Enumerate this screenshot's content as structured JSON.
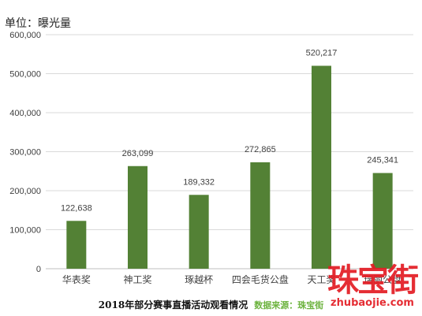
{
  "unit_label": "单位：曝光量",
  "footer": {
    "title": "2018年部分赛事直播活动观看情况",
    "source": "数据来源：珠宝街"
  },
  "watermark": {
    "text": "珠宝街",
    "url": "zhubaojie.com"
  },
  "colors": {
    "bar": "#538135",
    "grid": "#d9d9d9",
    "axis": "#bfbfbf",
    "text": "#404040",
    "brand": "#e31c23",
    "source": "#6db33f"
  },
  "chart_data": {
    "type": "bar",
    "categories": [
      "华表奖",
      "神工奖",
      "琢越杯",
      "四会毛货公盘",
      "天工奖",
      "瑞丽公盘"
    ],
    "values": [
      122638,
      263099,
      189332,
      272865,
      520217,
      245341
    ],
    "data_labels": [
      "122,638",
      "263,099",
      "189,332",
      "272,865",
      "520,217",
      "245,341"
    ],
    "yticks": [
      "0",
      "100,000",
      "200,000",
      "300,000",
      "400,000",
      "500,000",
      "600,000"
    ],
    "ylim": [
      0,
      600000
    ],
    "grid": true,
    "legend": "none"
  }
}
